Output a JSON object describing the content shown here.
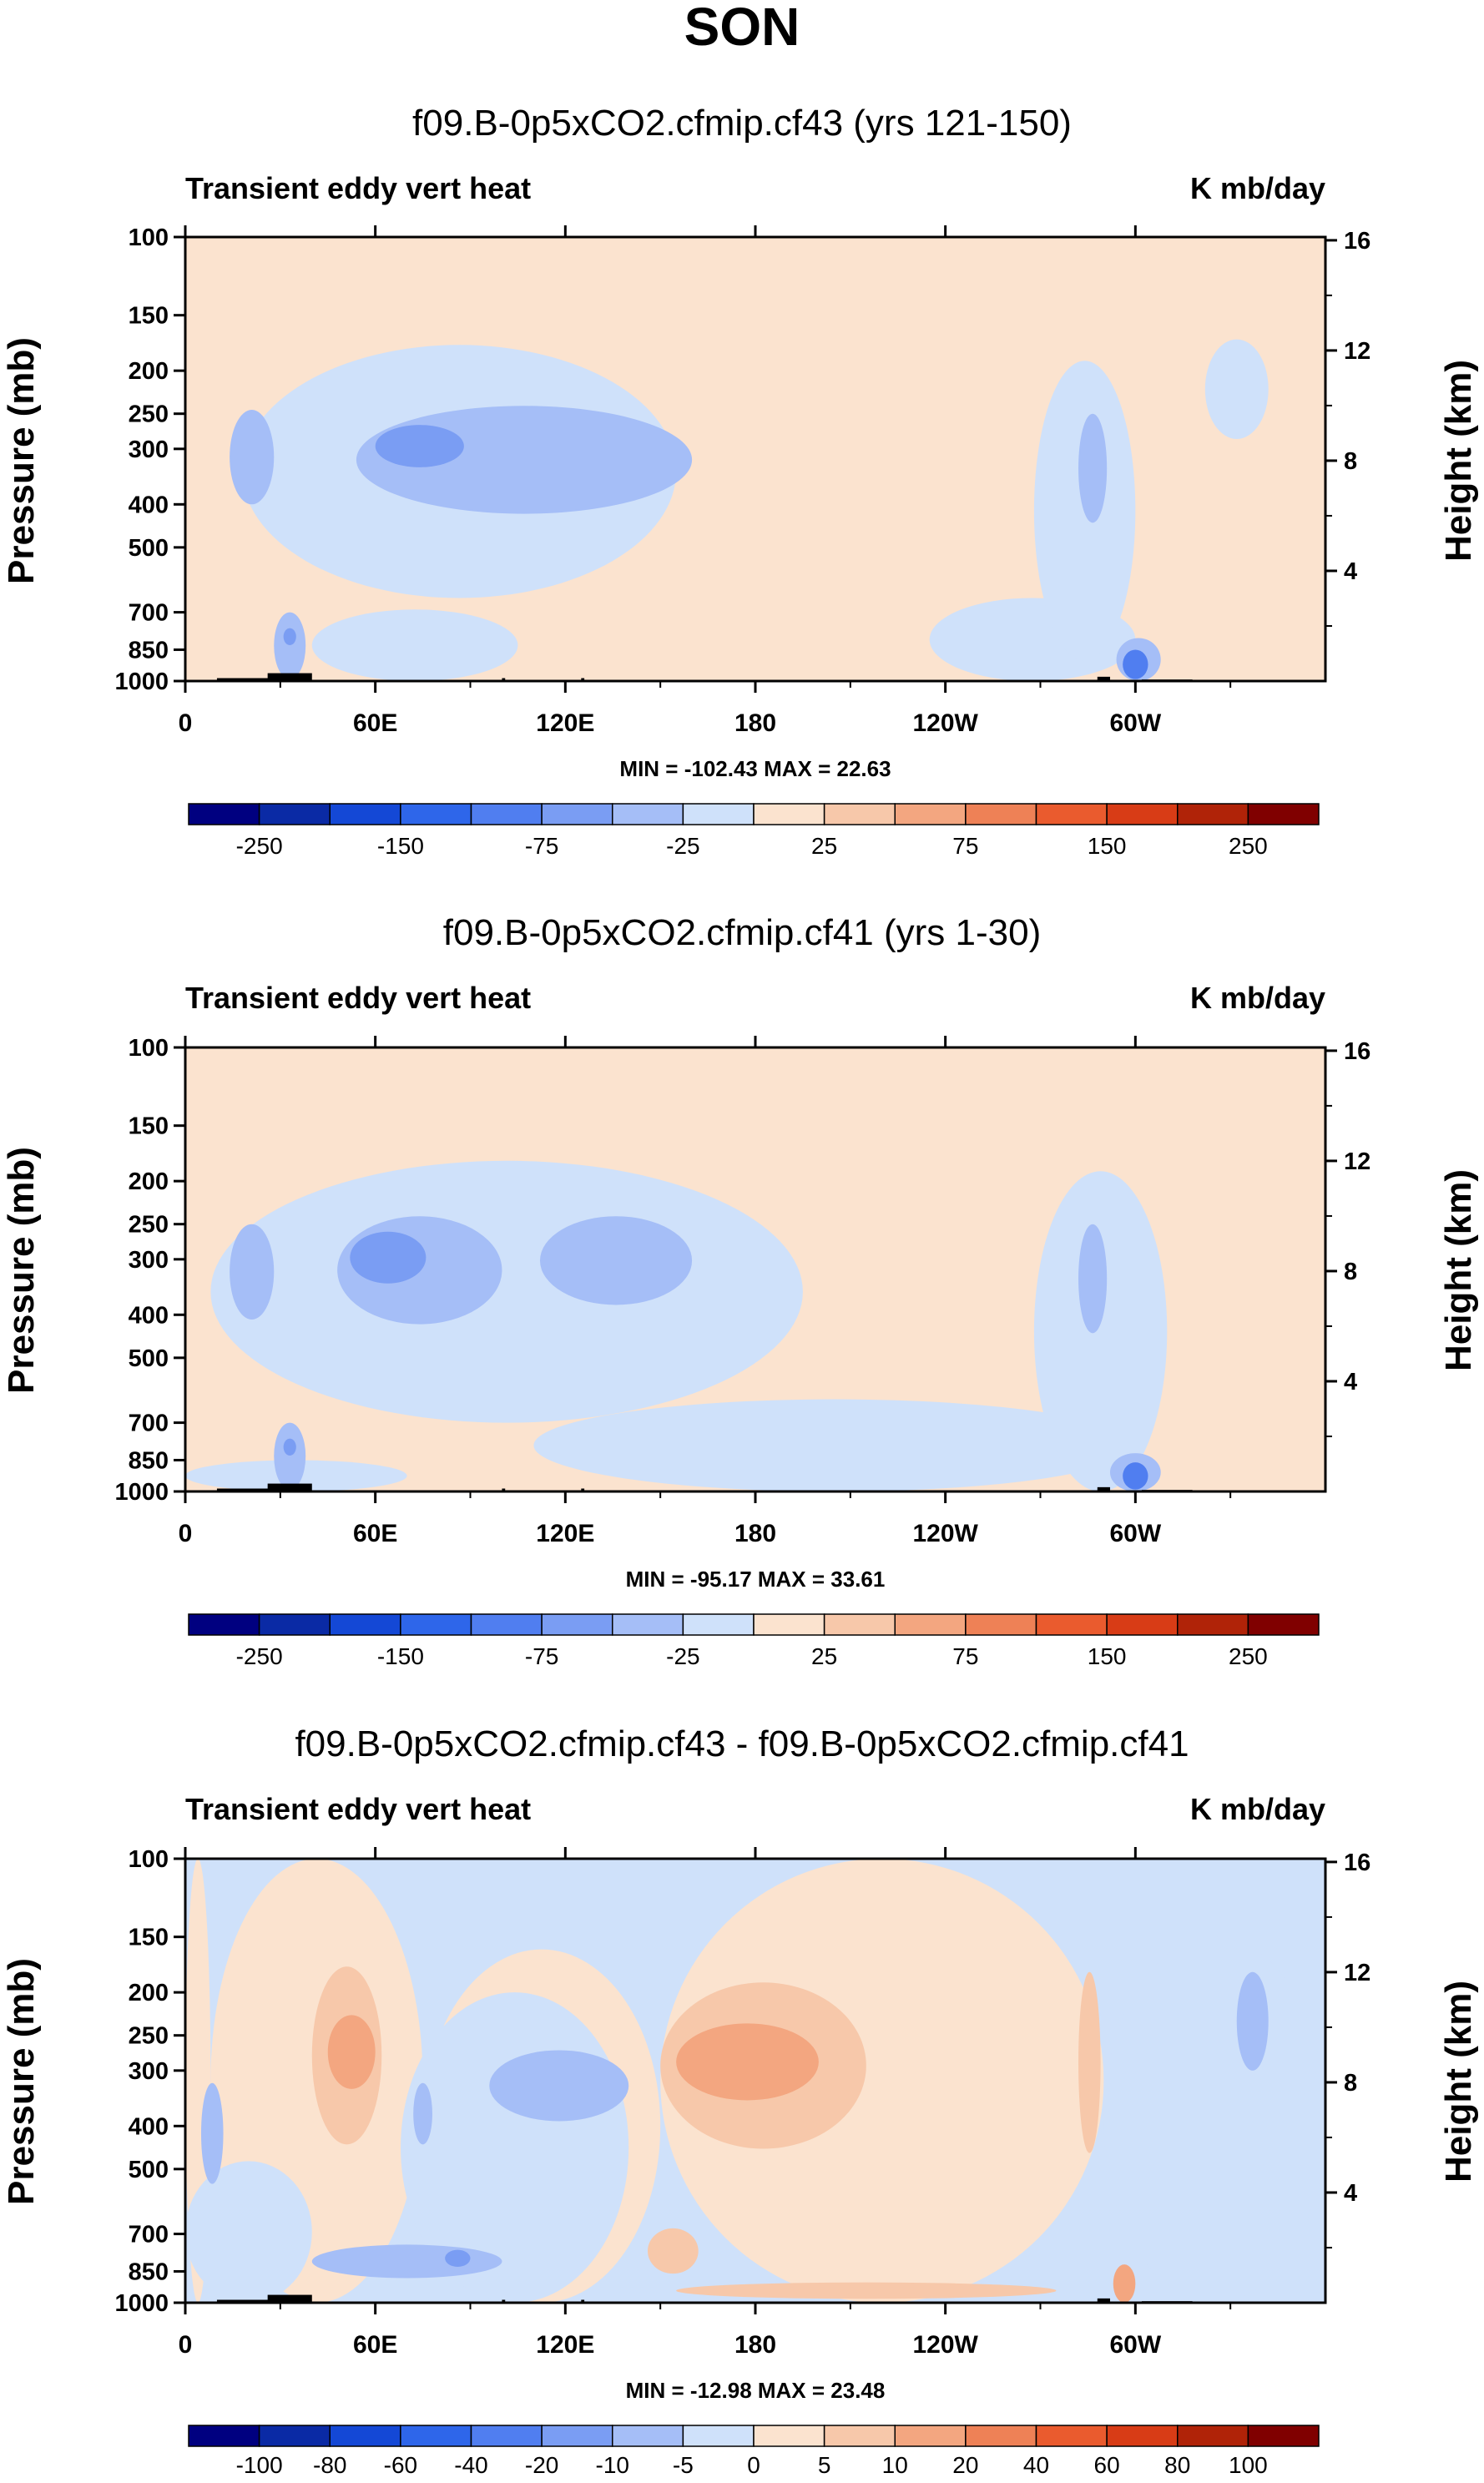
{
  "figure": {
    "title": "SON"
  },
  "chart_data": [
    {
      "type": "heatmap",
      "title": "f09.B-0p5xCO2.cfmip.cf43 (yrs 121-150)",
      "left_label": "Transient eddy vert heat",
      "right_label": "K mb/day",
      "ylabel": "Pressure (mb)",
      "ylabel_right": "Height (km)",
      "xticks": [
        "0",
        "60E",
        "120E",
        "180",
        "120W",
        "60W"
      ],
      "xtick_lon": [
        0,
        60,
        120,
        180,
        240,
        300
      ],
      "xlim": [
        0,
        360
      ],
      "yticks": [
        "100",
        "150",
        "200",
        "250",
        "300",
        "400",
        "500",
        "700",
        "850",
        "1000"
      ],
      "ytick_p": [
        100,
        150,
        200,
        250,
        300,
        400,
        500,
        700,
        850,
        1000
      ],
      "ylim": [
        100,
        1000
      ],
      "height_ticks": [
        "16",
        "12",
        "8",
        "4"
      ],
      "height_km": [
        16,
        12,
        8,
        4
      ],
      "stats": "MIN = -102.43   MAX =  22.63",
      "colorbar_levels": [
        "-250",
        "-150",
        "-75",
        "-25",
        "25",
        "75",
        "150",
        "250"
      ],
      "colorbar_label_after_box": [
        1,
        3,
        5,
        7,
        9,
        11,
        13,
        15
      ],
      "regions": [
        {
          "lon": [
            18,
            155
          ],
          "p": [
            175,
            650
          ],
          "v": -10
        },
        {
          "lon": [
            235,
            300
          ],
          "p": [
            650,
            1000
          ],
          "v": -10
        },
        {
          "lon": [
            268,
            300
          ],
          "p": [
            190,
            900
          ],
          "v": -10
        },
        {
          "lon": [
            40,
            105
          ],
          "p": [
            690,
            1000
          ],
          "v": -10
        },
        {
          "lon": [
            322,
            342
          ],
          "p": [
            170,
            285
          ],
          "v": -10
        },
        {
          "lon": [
            14,
            28
          ],
          "p": [
            245,
            400
          ],
          "v": -30
        },
        {
          "lon": [
            54,
            160
          ],
          "p": [
            240,
            420
          ],
          "v": -30
        },
        {
          "lon": [
            60,
            88
          ],
          "p": [
            265,
            330
          ],
          "v": -60
        },
        {
          "lon": [
            28,
            38
          ],
          "p": [
            700,
            990
          ],
          "v": -30
        },
        {
          "lon": [
            31,
            35
          ],
          "p": [
            760,
            830
          ],
          "v": -60
        },
        {
          "lon": [
            282,
            291
          ],
          "p": [
            250,
            440
          ],
          "v": -30
        },
        {
          "lon": [
            294,
            308
          ],
          "p": [
            800,
            1000
          ],
          "v": -35
        },
        {
          "lon": [
            296,
            304
          ],
          "p": [
            850,
            990
          ],
          "v": -90
        }
      ],
      "colorbar_colors": [
        "#000080",
        "#0a2aa5",
        "#1448d6",
        "#2e66ea",
        "#507ef0",
        "#7a9df3",
        "#a5bef7",
        "#cfe1fa",
        "#fbe3cf",
        "#f7c8aa",
        "#f3a680",
        "#ee8156",
        "#ea5b2e",
        "#d83c16",
        "#b02308",
        "#800000"
      ]
    },
    {
      "type": "heatmap",
      "title": "f09.B-0p5xCO2.cfmip.cf41 (yrs 1-30)",
      "left_label": "Transient eddy vert heat",
      "right_label": "K mb/day",
      "ylabel": "Pressure (mb)",
      "ylabel_right": "Height (km)",
      "xticks": [
        "0",
        "60E",
        "120E",
        "180",
        "120W",
        "60W"
      ],
      "xtick_lon": [
        0,
        60,
        120,
        180,
        240,
        300
      ],
      "xlim": [
        0,
        360
      ],
      "yticks": [
        "100",
        "150",
        "200",
        "250",
        "300",
        "400",
        "500",
        "700",
        "850",
        "1000"
      ],
      "ytick_p": [
        100,
        150,
        200,
        250,
        300,
        400,
        500,
        700,
        850,
        1000
      ],
      "ylim": [
        100,
        1000
      ],
      "height_ticks": [
        "16",
        "12",
        "8",
        "4"
      ],
      "height_km": [
        16,
        12,
        8,
        4
      ],
      "stats": "MIN = -95.17   MAX =  33.61",
      "colorbar_levels": [
        "-250",
        "-150",
        "-75",
        "-25",
        "25",
        "75",
        "150",
        "250"
      ],
      "colorbar_label_after_box": [
        1,
        3,
        5,
        7,
        9,
        11,
        13,
        15
      ],
      "regions": [
        {
          "lon": [
            8,
            195
          ],
          "p": [
            180,
            700
          ],
          "v": -10
        },
        {
          "lon": [
            110,
            300
          ],
          "p": [
            620,
            1000
          ],
          "v": -10
        },
        {
          "lon": [
            0,
            70
          ],
          "p": [
            850,
            1000
          ],
          "v": -10
        },
        {
          "lon": [
            268,
            310
          ],
          "p": [
            190,
            1000
          ],
          "v": -10
        },
        {
          "lon": [
            14,
            28
          ],
          "p": [
            250,
            410
          ],
          "v": -30
        },
        {
          "lon": [
            48,
            100
          ],
          "p": [
            240,
            420
          ],
          "v": -30
        },
        {
          "lon": [
            112,
            160
          ],
          "p": [
            240,
            380
          ],
          "v": -30
        },
        {
          "lon": [
            52,
            76
          ],
          "p": [
            260,
            340
          ],
          "v": -60
        },
        {
          "lon": [
            28,
            38
          ],
          "p": [
            700,
            990
          ],
          "v": -30
        },
        {
          "lon": [
            31,
            35
          ],
          "p": [
            760,
            830
          ],
          "v": -60
        },
        {
          "lon": [
            282,
            291
          ],
          "p": [
            250,
            440
          ],
          "v": -30
        },
        {
          "lon": [
            292,
            308
          ],
          "p": [
            820,
            1000
          ],
          "v": -35
        },
        {
          "lon": [
            296,
            304
          ],
          "p": [
            860,
            990
          ],
          "v": -90
        }
      ],
      "colorbar_colors": [
        "#000080",
        "#0a2aa5",
        "#1448d6",
        "#2e66ea",
        "#507ef0",
        "#7a9df3",
        "#a5bef7",
        "#cfe1fa",
        "#fbe3cf",
        "#f7c8aa",
        "#f3a680",
        "#ee8156",
        "#ea5b2e",
        "#d83c16",
        "#b02308",
        "#800000"
      ]
    },
    {
      "type": "heatmap",
      "title": "f09.B-0p5xCO2.cfmip.cf43 - f09.B-0p5xCO2.cfmip.cf41",
      "left_label": "Transient eddy vert heat",
      "right_label": "K mb/day",
      "ylabel": "Pressure (mb)",
      "ylabel_right": "Height (km)",
      "xticks": [
        "0",
        "60E",
        "120E",
        "180",
        "120W",
        "60W"
      ],
      "xtick_lon": [
        0,
        60,
        120,
        180,
        240,
        300
      ],
      "xlim": [
        0,
        360
      ],
      "yticks": [
        "100",
        "150",
        "200",
        "250",
        "300",
        "400",
        "500",
        "700",
        "850",
        "1000"
      ],
      "ytick_p": [
        100,
        150,
        200,
        250,
        300,
        400,
        500,
        700,
        850,
        1000
      ],
      "ylim": [
        100,
        1000
      ],
      "height_ticks": [
        "16",
        "12",
        "8",
        "4"
      ],
      "height_km": [
        16,
        12,
        8,
        4
      ],
      "stats": "MIN = -12.98   MAX =  23.48",
      "colorbar_levels": [
        "-100",
        "-80",
        "-60",
        "-40",
        "-20",
        "-10",
        "-5",
        "0",
        "5",
        "10",
        "20",
        "40",
        "60",
        "80",
        "100"
      ],
      "colorbar_label_after_box": [
        1,
        2,
        3,
        4,
        5,
        6,
        7,
        8,
        9,
        10,
        11,
        12,
        13,
        14,
        15
      ],
      "regions": [
        {
          "lon": [
            0,
            8
          ],
          "p": [
            100,
            1000
          ],
          "v": 2
        },
        {
          "lon": [
            8,
            75
          ],
          "p": [
            100,
            1000
          ],
          "v": 2
        },
        {
          "lon": [
            75,
            150
          ],
          "p": [
            160,
            1000
          ],
          "v": 2
        },
        {
          "lon": [
            150,
            290
          ],
          "p": [
            100,
            1000
          ],
          "v": 2
        },
        {
          "lon": [
            40,
            62
          ],
          "p": [
            175,
            440
          ],
          "v": 7
        },
        {
          "lon": [
            45,
            60
          ],
          "p": [
            225,
            330
          ],
          "v": 15
        },
        {
          "lon": [
            150,
            215
          ],
          "p": [
            190,
            450
          ],
          "v": 7
        },
        {
          "lon": [
            155,
            200
          ],
          "p": [
            235,
            350
          ],
          "v": 15
        },
        {
          "lon": [
            155,
            275
          ],
          "p": [
            900,
            980
          ],
          "v": 7
        },
        {
          "lon": [
            282,
            289
          ],
          "p": [
            180,
            460
          ],
          "v": 7
        },
        {
          "lon": [
            146,
            162
          ],
          "p": [
            680,
            860
          ],
          "v": 7
        },
        {
          "lon": [
            293,
            300
          ],
          "p": [
            820,
            1000
          ],
          "v": 15
        },
        {
          "lon": [
            68,
            140
          ],
          "p": [
            200,
            1000
          ],
          "v": -3
        },
        {
          "lon": [
            0,
            40
          ],
          "p": [
            480,
            1000
          ],
          "v": -3
        },
        {
          "lon": [
            290,
            360
          ],
          "p": [
            150,
            1000
          ],
          "v": -3
        },
        {
          "lon": [
            5,
            12
          ],
          "p": [
            320,
            540
          ],
          "v": -7
        },
        {
          "lon": [
            72,
            78
          ],
          "p": [
            320,
            440
          ],
          "v": -7
        },
        {
          "lon": [
            96,
            140
          ],
          "p": [
            270,
            390
          ],
          "v": -7
        },
        {
          "lon": [
            40,
            100
          ],
          "p": [
            740,
            880
          ],
          "v": -7
        },
        {
          "lon": [
            82,
            90
          ],
          "p": [
            760,
            830
          ],
          "v": -15
        },
        {
          "lon": [
            332,
            342
          ],
          "p": [
            180,
            300
          ],
          "v": -7
        }
      ],
      "colorbar_colors": [
        "#000080",
        "#0a2aa5",
        "#1448d6",
        "#2e66ea",
        "#507ef0",
        "#7a9df3",
        "#a5bef7",
        "#cfe1fa",
        "#fbe3cf",
        "#f7c8aa",
        "#f3a680",
        "#ee8156",
        "#ea5b2e",
        "#d83c16",
        "#b02308",
        "#800000"
      ]
    }
  ]
}
